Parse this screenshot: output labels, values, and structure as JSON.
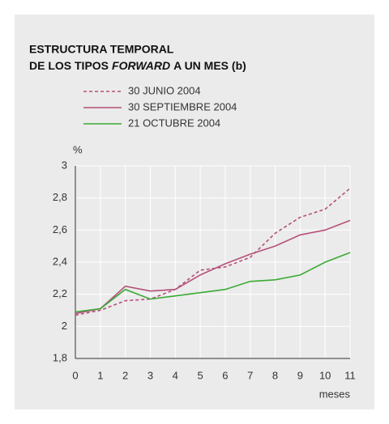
{
  "chart_data": {
    "type": "line",
    "title": {
      "line1": "ESTRUCTURA TEMPORAL",
      "line2": [
        "DE LOS TIPOS",
        "FORWARD",
        "A UN MES (b)"
      ]
    },
    "y_label": "%",
    "x_label": "meses",
    "x": [
      0,
      1,
      2,
      3,
      4,
      5,
      6,
      7,
      8,
      9,
      10,
      11
    ],
    "series": [
      {
        "name": "30 JUNIO 2004",
        "color": "#b5507a",
        "style": "dashed",
        "values": [
          2.07,
          2.1,
          2.16,
          2.17,
          2.23,
          2.35,
          2.37,
          2.43,
          2.58,
          2.68,
          2.73,
          2.86
        ]
      },
      {
        "name": "30 SEPTIEMBRE 2004",
        "color": "#b5507a",
        "style": "solid",
        "values": [
          2.08,
          2.11,
          2.25,
          2.22,
          2.23,
          2.32,
          2.39,
          2.45,
          2.5,
          2.57,
          2.6,
          2.66
        ]
      },
      {
        "name": "21 OCTUBRE 2004",
        "color": "#3aaa35",
        "style": "solid",
        "values": [
          2.09,
          2.11,
          2.23,
          2.17,
          2.19,
          2.21,
          2.23,
          2.28,
          2.29,
          2.32,
          2.4,
          2.46
        ]
      }
    ],
    "xlim": [
      0,
      11
    ],
    "xticks": [
      0,
      1,
      2,
      3,
      4,
      5,
      6,
      7,
      8,
      9,
      10,
      11
    ],
    "ylim": [
      1.8,
      3
    ],
    "yticks": [
      {
        "value": 1.8,
        "label": "1,8"
      },
      2,
      {
        "value": 2.2,
        "label": "2,2"
      },
      {
        "value": 2.4,
        "label": "2,4"
      },
      {
        "value": 2.6,
        "label": "2,6"
      },
      {
        "value": 2.8,
        "label": "2,8"
      },
      3
    ],
    "grid": true
  }
}
